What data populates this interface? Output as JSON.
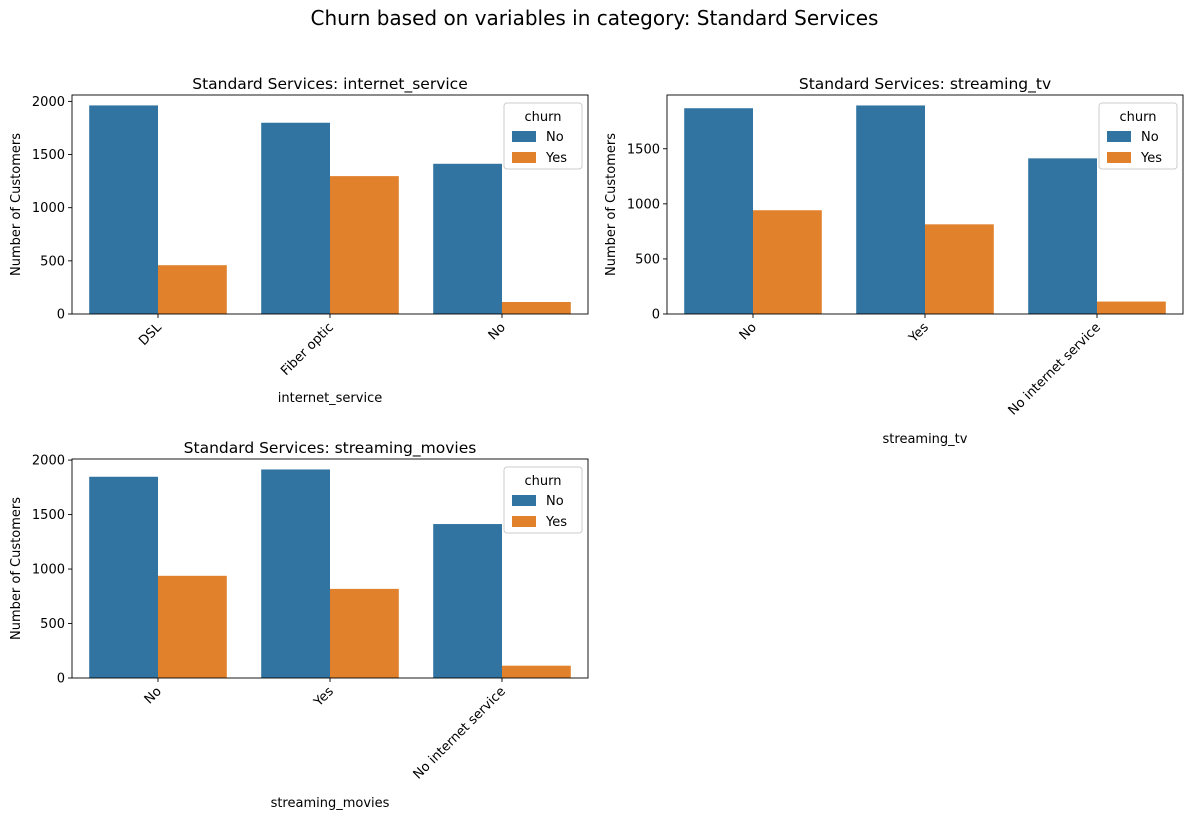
{
  "title": "Churn based on variables in category: Standard Services",
  "colors": {
    "no": "#3274a1",
    "yes": "#e1812c"
  },
  "chart_data": [
    {
      "type": "bar",
      "title": "Standard Services: internet_service",
      "xlabel": "internet_service",
      "ylabel": "Number of Customers",
      "categories": [
        "DSL",
        "Fiber optic",
        "No"
      ],
      "series": [
        {
          "name": "No",
          "values": [
            1962,
            1799,
            1413
          ]
        },
        {
          "name": "Yes",
          "values": [
            459,
            1297,
            113
          ]
        }
      ],
      "ylim": [
        0,
        2060
      ],
      "yticks": [
        0,
        500,
        1000,
        1500,
        2000
      ],
      "legend_title": "churn",
      "legend_position": "top-right"
    },
    {
      "type": "bar",
      "title": "Standard Services: streaming_tv",
      "xlabel": "streaming_tv",
      "ylabel": "Number of Customers",
      "categories": [
        "No",
        "Yes",
        "No internet service"
      ],
      "series": [
        {
          "name": "No",
          "values": [
            1868,
            1893,
            1413
          ]
        },
        {
          "name": "Yes",
          "values": [
            942,
            814,
            113
          ]
        }
      ],
      "ylim": [
        0,
        1988
      ],
      "yticks": [
        0,
        500,
        1000,
        1500
      ],
      "legend_title": "churn",
      "legend_position": "top-right"
    },
    {
      "type": "bar",
      "title": "Standard Services: streaming_movies",
      "xlabel": "streaming_movies",
      "ylabel": "Number of Customers",
      "categories": [
        "No",
        "Yes",
        "No internet service"
      ],
      "series": [
        {
          "name": "No",
          "values": [
            1847,
            1914,
            1413
          ]
        },
        {
          "name": "Yes",
          "values": [
            938,
            818,
            113
          ]
        }
      ],
      "ylim": [
        0,
        2010
      ],
      "yticks": [
        0,
        500,
        1000,
        1500,
        2000
      ],
      "legend_title": "churn",
      "legend_position": "top-right"
    }
  ]
}
